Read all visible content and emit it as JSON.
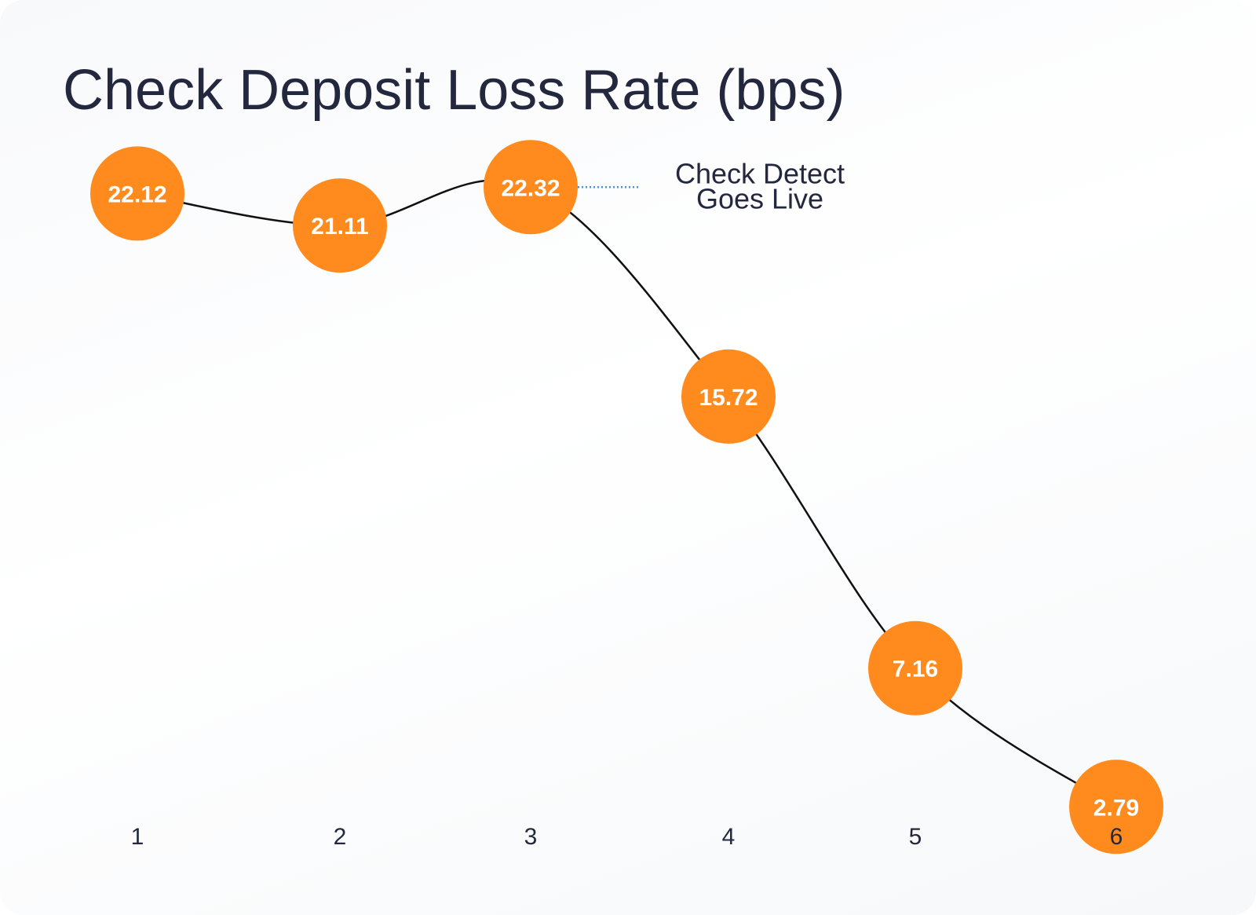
{
  "chart_data": {
    "type": "line",
    "title": "Check Deposit Loss Rate (bps)",
    "xlabel": "",
    "ylabel": "",
    "x": [
      "1",
      "2",
      "3",
      "4",
      "5",
      "6"
    ],
    "series": [
      {
        "values": [
          22.12,
          21.11,
          22.32,
          15.72,
          7.16,
          2.79
        ]
      }
    ],
    "data_labels": [
      "22.12",
      "21.11",
      "22.32",
      "15.72",
      "7.16",
      "2.79"
    ],
    "ylim": [
      0,
      25
    ],
    "grid": false,
    "line_shape": "smooth",
    "colors": {
      "marker": "#ff8a1d",
      "line": "#111111",
      "marker_text": "#ffffff",
      "annotation_connector": "#4a8fe0",
      "text": "#24283f"
    },
    "annotation": {
      "x": "3",
      "lines": [
        "Check Detect",
        "Goes Live"
      ]
    }
  }
}
